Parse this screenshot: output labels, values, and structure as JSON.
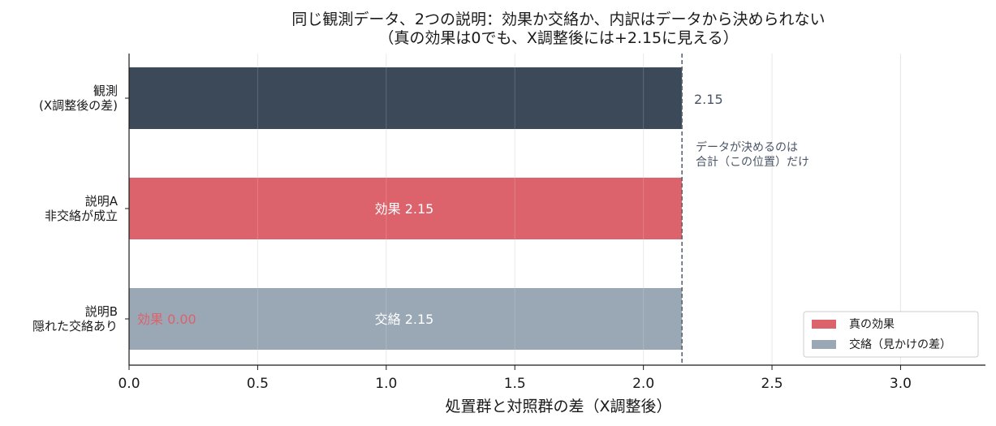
{
  "chart_data": {
    "type": "bar",
    "orientation": "horizontal",
    "stacked": true,
    "title": "同じ観測データ、2つの説明：効果か交絡か、内訳はデータから決められない",
    "subtitle": "（真の効果は0でも、X調整後には+2.15に見える）",
    "xlabel": "処置群と対照群の差（X調整後）",
    "xlim": [
      0,
      3.33
    ],
    "xticks": [
      0.0,
      0.5,
      1.0,
      1.5,
      2.0,
      2.5,
      3.0
    ],
    "xtick_labels": [
      "0.0",
      "0.5",
      "1.0",
      "1.5",
      "2.0",
      "2.5",
      "3.0"
    ],
    "grid": "x",
    "categories": [
      {
        "line1": "観測",
        "line2": "(X調整後の差)"
      },
      {
        "line1": "説明A",
        "line2": "非交絡が成立"
      },
      {
        "line1": "説明B",
        "line2": "隠れた交絡あり"
      }
    ],
    "series": [
      {
        "name": "真の効果",
        "color": "#dc636b",
        "values": [
          null,
          2.15,
          0.0
        ]
      },
      {
        "name": "交絡（見かけの差）",
        "color": "#9aa7b5",
        "values": [
          null,
          0.0,
          2.15
        ]
      }
    ],
    "observed": {
      "value": 2.15,
      "color": "#3b4958"
    },
    "reference_line": {
      "x": 2.15,
      "style": "dashed",
      "color": "#5c6670"
    },
    "annotations": {
      "observed_value": "2.15",
      "note_line1": "データが決めるのは",
      "note_line2": "合計（この位置）だけ",
      "bar_a_label": "効果 2.15",
      "bar_b_label": "交絡 2.15",
      "bar_b_effect_label": "効果 0.00"
    },
    "legend": {
      "position": "bottom-right"
    }
  }
}
